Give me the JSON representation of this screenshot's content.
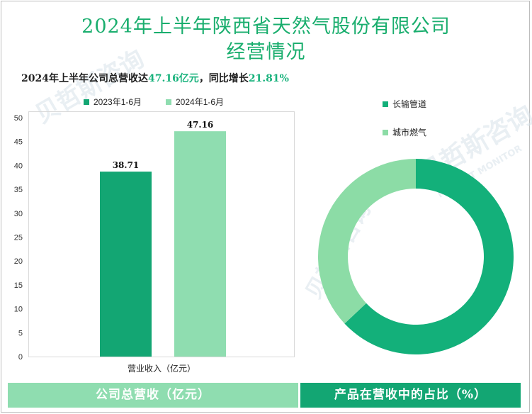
{
  "title_line1": "2024年上半年陕西省天然气股份有限公司",
  "title_line2": "经营情况",
  "summary": {
    "prefix": "2024年上半年公司总营收达",
    "revenue": "47.16亿元",
    "mid": "，同比增长",
    "growth": "21.81%"
  },
  "watermark": {
    "cn": "贝哲斯咨询",
    "en": "MARKET MONITOR"
  },
  "colors": {
    "accent_dark": "#13a673",
    "accent_light": "#8fddb0",
    "highlight": "#18b27c"
  },
  "banners": {
    "left": "公司总营收（亿元）",
    "right": "产品在营收中的占比（%）"
  },
  "chart_data": [
    {
      "type": "bar",
      "title": "公司总营收（亿元）",
      "categories": [
        "营业收入（亿元）"
      ],
      "series": [
        {
          "name": "2023年1-6月",
          "values": [
            38.71
          ],
          "color": "#13a673"
        },
        {
          "name": "2024年1-6月",
          "values": [
            47.16
          ],
          "color": "#8fddb0"
        }
      ],
      "xlabel": "营业收入（亿元）",
      "ylabel": "",
      "ylim": [
        0,
        50
      ],
      "yticks": [
        0,
        5,
        10,
        15,
        20,
        25,
        30,
        35,
        40,
        45,
        50
      ],
      "data_labels": [
        "38.71",
        "47.16"
      ],
      "legend_position": "top"
    },
    {
      "type": "pie",
      "style": "donut",
      "title": "产品在营收中的占比（%）",
      "labels": [
        "长输管道",
        "城市燃气"
      ],
      "values": [
        63,
        37
      ],
      "colors": [
        "#13b07a",
        "#8cdca6"
      ],
      "legend_position": "top-right"
    }
  ]
}
